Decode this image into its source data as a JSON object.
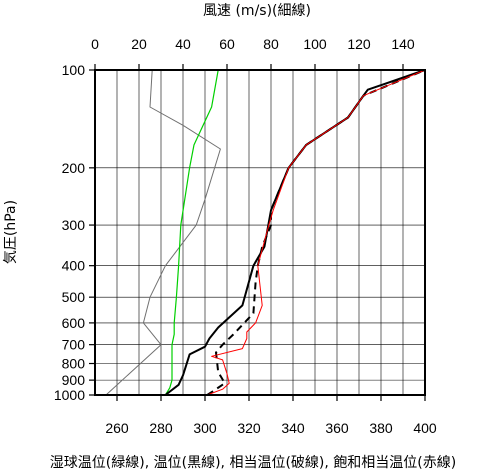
{
  "chart_data": {
    "type": "line",
    "top_axis_label": "風速 (m/s)(細線)",
    "bottom_axis_label": "湿球温位(緑線), 温位(黒線), 相当温位(破線), 飽和相当温位(赤線)",
    "ylabel": "気圧(hPa)",
    "y_scale": "log",
    "y_reversed": true,
    "ylim": [
      1000,
      100
    ],
    "y_ticks": [
      100,
      200,
      300,
      400,
      500,
      600,
      700,
      800,
      900,
      1000
    ],
    "x_bottom": {
      "lim": [
        250,
        400
      ],
      "ticks": [
        260,
        280,
        300,
        320,
        340,
        360,
        380,
        400
      ],
      "grid_step": 10
    },
    "x_top": {
      "lim": [
        0,
        150
      ],
      "ticks": [
        0,
        20,
        40,
        60,
        80,
        100,
        120,
        140
      ]
    },
    "grid": true,
    "series": [
      {
        "axis": "top",
        "color": "#707070",
        "style": "solid-thin",
        "points": [
          [
            5,
            1000
          ],
          [
            30,
            700
          ],
          [
            22,
            600
          ],
          [
            25,
            500
          ],
          [
            32,
            400
          ],
          [
            46,
            300
          ],
          [
            50,
            250
          ],
          [
            57,
            175
          ],
          [
            40,
            148
          ],
          [
            25,
            130
          ],
          [
            26,
            100
          ]
        ]
      },
      {
        "axis": "bottom",
        "color": "#00d000",
        "style": "solid",
        "points": [
          [
            282,
            1000
          ],
          [
            284,
            950
          ],
          [
            285,
            900
          ],
          [
            285,
            800
          ],
          [
            285,
            700
          ],
          [
            286,
            650
          ],
          [
            286,
            600
          ],
          [
            287,
            500
          ],
          [
            288,
            400
          ],
          [
            289,
            300
          ],
          [
            293,
            200
          ],
          [
            295,
            170
          ],
          [
            303,
            130
          ],
          [
            306,
            100
          ]
        ]
      },
      {
        "axis": "bottom",
        "color": "#000000",
        "style": "solid-thick",
        "points": [
          [
            282,
            1000
          ],
          [
            288,
            930
          ],
          [
            290,
            870
          ],
          [
            293,
            750
          ],
          [
            300,
            710
          ],
          [
            302,
            670
          ],
          [
            306,
            620
          ],
          [
            317,
            530
          ],
          [
            322,
            400
          ],
          [
            327,
            350
          ],
          [
            330,
            270
          ],
          [
            338,
            200
          ],
          [
            346,
            170
          ],
          [
            365,
            140
          ],
          [
            372,
            120
          ],
          [
            374,
            115
          ],
          [
            400,
            100
          ]
        ]
      },
      {
        "axis": "bottom",
        "color": "#000000",
        "style": "dashed",
        "points": [
          [
            301,
            1000
          ],
          [
            305,
            960
          ],
          [
            309,
            920
          ],
          [
            306,
            850
          ],
          [
            305,
            740
          ],
          [
            308,
            700
          ],
          [
            313,
            650
          ],
          [
            322,
            560
          ],
          [
            323,
            450
          ],
          [
            324,
            400
          ],
          [
            326,
            350
          ],
          [
            330,
            300
          ],
          [
            330,
            270
          ],
          [
            338,
            200
          ],
          [
            346,
            170
          ],
          [
            365,
            140
          ],
          [
            372,
            120
          ],
          [
            400,
            100
          ]
        ]
      },
      {
        "axis": "bottom",
        "color": "#ff0000",
        "style": "solid-thin",
        "points": [
          [
            301,
            1000
          ],
          [
            308,
            960
          ],
          [
            311,
            920
          ],
          [
            310,
            860
          ],
          [
            308,
            780
          ],
          [
            303,
            760
          ],
          [
            317,
            720
          ],
          [
            319,
            670
          ],
          [
            319,
            640
          ],
          [
            323,
            600
          ],
          [
            326,
            530
          ],
          [
            324,
            400
          ],
          [
            329,
            300
          ],
          [
            331,
            270
          ],
          [
            338,
            200
          ],
          [
            346,
            170
          ],
          [
            365,
            140
          ],
          [
            372,
            120
          ],
          [
            400,
            100
          ]
        ]
      }
    ]
  }
}
